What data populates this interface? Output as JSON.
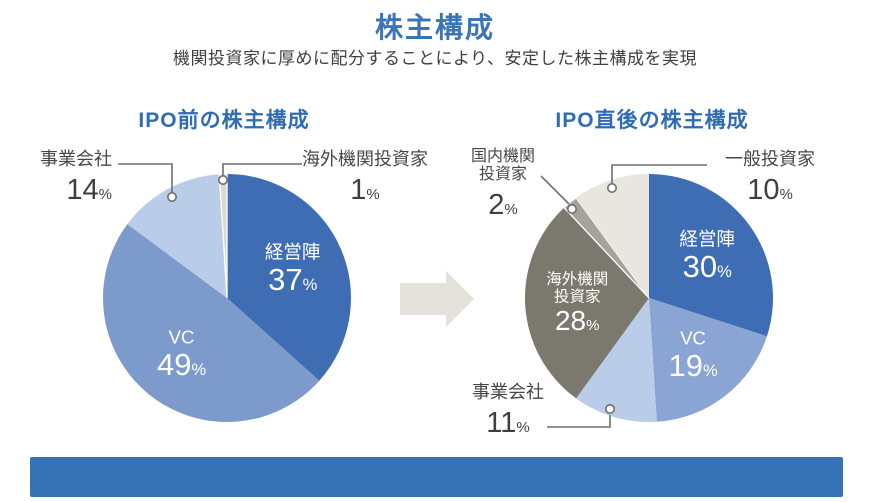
{
  "header": {
    "title": "株主構成",
    "subtitle": "機関投資家に厚めに配分することにより、安定した株主構成を実現"
  },
  "colors": {
    "title_blue": "#3C74B8",
    "chart_title_blue": "#2F6CB3",
    "subtitle_text": "#404040",
    "label_text": "#474747",
    "leader_line": "#6E6E6E",
    "arrow": "#E3E1D9",
    "footer_bar": "#3571B5",
    "slice_dark_blue": "#3E6DB4",
    "slice_medium_blue": "#7D9ACD",
    "slice_light_blue": "#B9CCE8",
    "slice_light_gray": "#D9D8D1",
    "slice_dark_taupe": "#7B786E",
    "slice_mid_gray": "#A6A39B",
    "slice_beige": "#E7E6DF"
  },
  "chart_data": [
    {
      "type": "pie",
      "title": "IPO前の株主構成",
      "unit": "%",
      "order": "clockwise-from-top",
      "slices": [
        {
          "label": "経営陣",
          "value": 37,
          "color": "#3E6DB4",
          "label_position": "inside",
          "text_color": "#ffffff"
        },
        {
          "label": "VC",
          "value": 49,
          "color": "#7D9ACD",
          "label_position": "inside",
          "text_color": "#ffffff"
        },
        {
          "label": "事業会社",
          "value": 14,
          "color": "#B9CCE8",
          "label_position": "outside-left"
        },
        {
          "label": "海外機関投資家",
          "value": 1,
          "color": "#D9D8D1",
          "label_position": "outside-right"
        }
      ]
    },
    {
      "type": "pie",
      "title": "IPO直後の株主構成",
      "unit": "%",
      "order": "clockwise-from-top",
      "slices": [
        {
          "label": "経営陣",
          "value": 30,
          "color": "#3E6DB4",
          "label_position": "inside",
          "text_color": "#ffffff"
        },
        {
          "label": "VC",
          "value": 19,
          "color": "#8AA4D3",
          "label_position": "inside",
          "text_color": "#ffffff"
        },
        {
          "label": "事業会社",
          "value": 11,
          "color": "#B9CCE8",
          "label_position": "outside-left-bottom"
        },
        {
          "label": "海外機関投資家",
          "value": 28,
          "color": "#7B786E",
          "label_position": "inside",
          "text_color": "#ffffff",
          "label_lines": [
            "海外機関",
            "投資家"
          ]
        },
        {
          "label": "国内機関投資家",
          "value": 2,
          "color": "#A6A39B",
          "label_position": "outside-left-top",
          "label_lines": [
            "国内機関",
            "投資家"
          ]
        },
        {
          "label": "一般投資家",
          "value": 10,
          "color": "#E7E6DF",
          "label_position": "outside-right"
        }
      ]
    }
  ]
}
